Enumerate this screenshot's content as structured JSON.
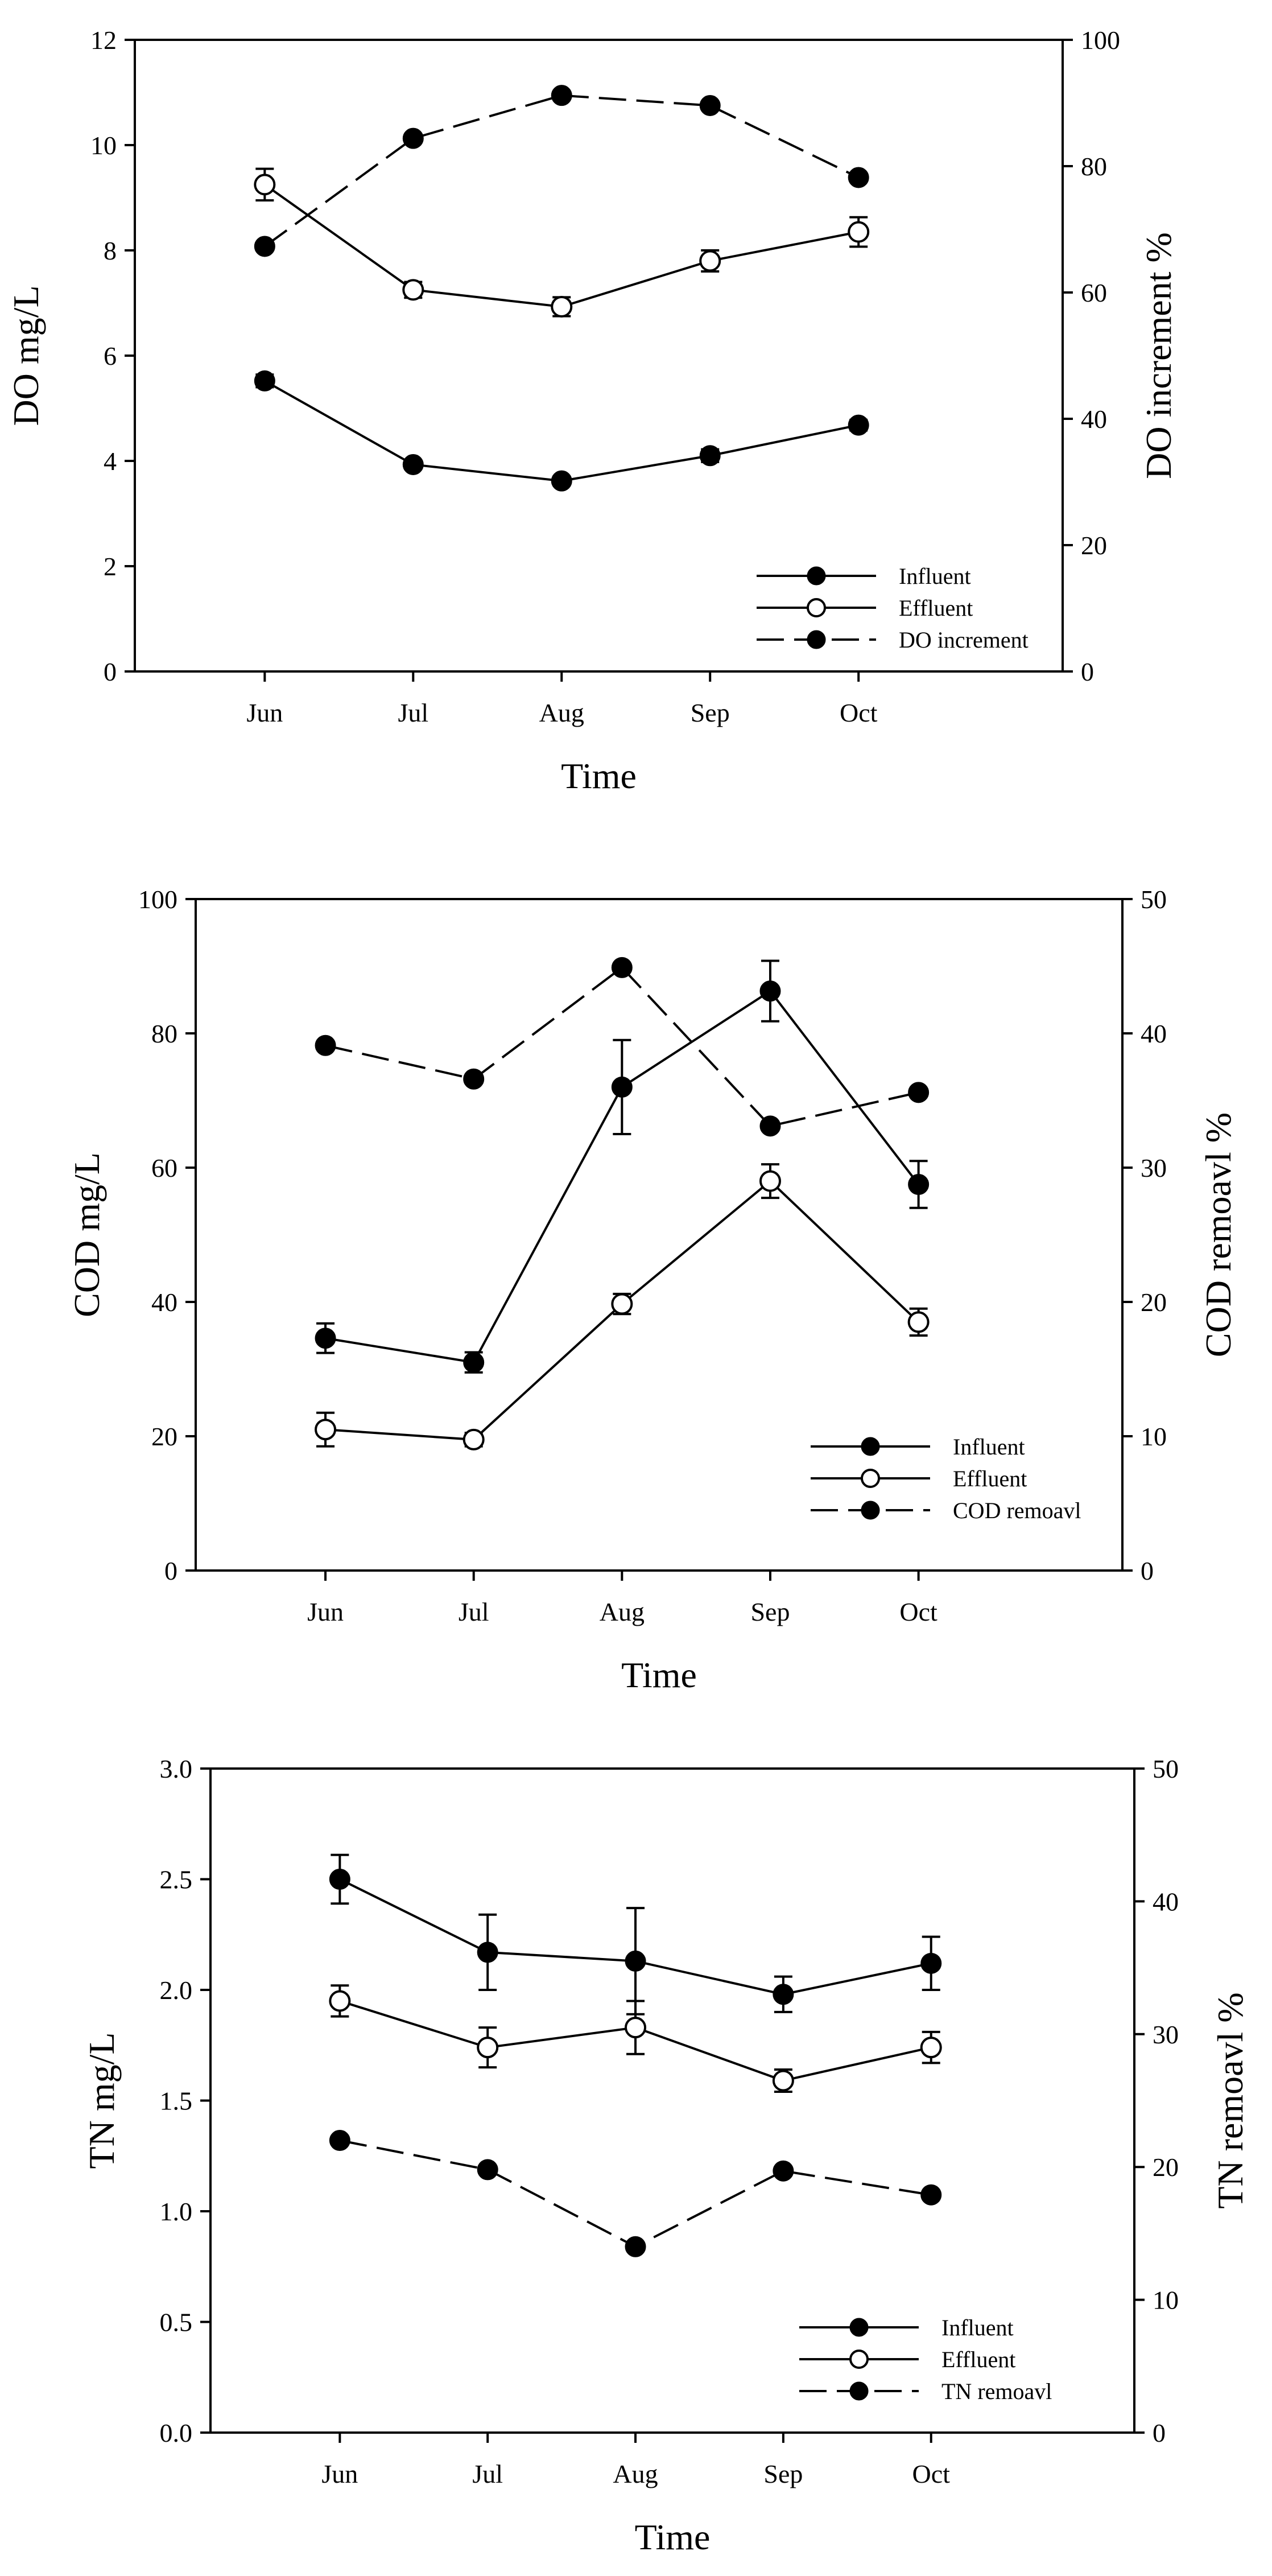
{
  "chart_data": [
    {
      "type": "line",
      "categories": [
        "Jun",
        "Jul",
        "Aug",
        "Sep",
        "Oct"
      ],
      "xlabel": "Time",
      "ylabel": "DO mg/L",
      "ylim": [
        0,
        12
      ],
      "yticks": [
        0,
        2,
        4,
        6,
        8,
        10,
        12
      ],
      "y2label": "DO increment %",
      "y2lim": [
        0,
        100
      ],
      "y2ticks": [
        0,
        20,
        40,
        60,
        80,
        100
      ],
      "legend_position": "bottom-right",
      "series": [
        {
          "name": "Influent",
          "axis": "left",
          "style": "solid",
          "marker": "filled",
          "values": [
            5.52,
            3.93,
            3.62,
            4.1,
            4.68
          ],
          "errors": [
            0.12,
            0.08,
            0.08,
            0.12,
            0.1
          ]
        },
        {
          "name": "Effluent",
          "axis": "left",
          "style": "solid",
          "marker": "open",
          "values": [
            9.25,
            7.25,
            6.93,
            7.8,
            8.35
          ],
          "errors": [
            0.3,
            0.15,
            0.18,
            0.2,
            0.28
          ]
        },
        {
          "name": "DO increment",
          "axis": "right",
          "style": "dashed",
          "marker": "filled",
          "values": [
            67.3,
            84.4,
            91.2,
            89.6,
            78.2
          ],
          "errors": [
            0,
            0,
            0,
            0,
            0
          ]
        }
      ]
    },
    {
      "type": "line",
      "categories": [
        "Jun",
        "Jul",
        "Aug",
        "Sep",
        "Oct"
      ],
      "xlabel": "Time",
      "ylabel": "COD mg/L",
      "ylim": [
        0,
        100
      ],
      "yticks": [
        0,
        20,
        40,
        60,
        80,
        100
      ],
      "y2label": "COD remoavl %",
      "y2lim": [
        0,
        50
      ],
      "y2ticks": [
        0,
        10,
        20,
        30,
        40,
        50
      ],
      "legend_position": "bottom-right",
      "series": [
        {
          "name": "Influent",
          "axis": "left",
          "style": "solid",
          "marker": "filled",
          "values": [
            34.6,
            31.0,
            72.0,
            86.3,
            57.5
          ],
          "errors": [
            2.2,
            1.5,
            7.0,
            4.5,
            3.5
          ]
        },
        {
          "name": "Effluent",
          "axis": "left",
          "style": "solid",
          "marker": "open",
          "values": [
            21.0,
            19.5,
            39.7,
            58.0,
            37.0
          ],
          "errors": [
            2.5,
            1.0,
            1.5,
            2.5,
            2.0
          ]
        },
        {
          "name": "COD remoavl",
          "axis": "right",
          "style": "dashed",
          "marker": "filled",
          "values": [
            39.1,
            36.6,
            44.9,
            33.1,
            35.6
          ],
          "errors": [
            0,
            0,
            0,
            0,
            0
          ]
        }
      ]
    },
    {
      "type": "line",
      "categories": [
        "Jun",
        "Jul",
        "Aug",
        "Sep",
        "Oct"
      ],
      "xlabel": "Time",
      "ylabel": "TN mg/L",
      "ylim": [
        0,
        3.0
      ],
      "yticks": [
        "0.0",
        "0.5",
        "1.0",
        "1.5",
        "2.0",
        "2.5",
        "3.0"
      ],
      "y2label": "TN remoavl %",
      "y2lim": [
        0,
        50
      ],
      "y2ticks": [
        0,
        10,
        20,
        30,
        40,
        50
      ],
      "legend_position": "bottom-right",
      "series": [
        {
          "name": "Influent",
          "axis": "left",
          "style": "solid",
          "marker": "filled",
          "values": [
            2.5,
            2.17,
            2.13,
            1.98,
            2.12
          ],
          "errors": [
            0.11,
            0.17,
            0.24,
            0.08,
            0.12
          ]
        },
        {
          "name": "Effluent",
          "axis": "left",
          "style": "solid",
          "marker": "open",
          "values": [
            1.95,
            1.74,
            1.83,
            1.59,
            1.74
          ],
          "errors": [
            0.07,
            0.09,
            0.12,
            0.05,
            0.07
          ]
        },
        {
          "name": "TN remoavl",
          "axis": "right",
          "style": "dashed",
          "marker": "filled",
          "values": [
            22.0,
            19.8,
            14.0,
            19.7,
            17.9
          ],
          "errors": [
            0,
            0,
            0,
            0,
            0
          ]
        }
      ]
    }
  ]
}
